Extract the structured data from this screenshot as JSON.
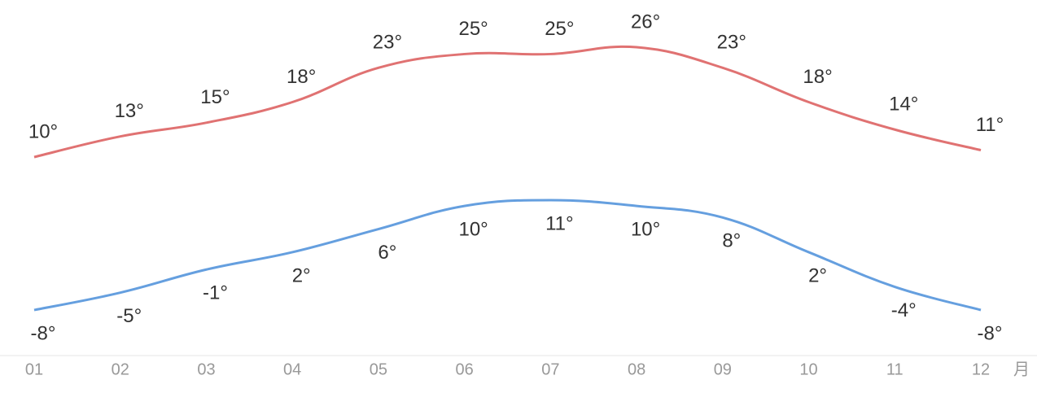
{
  "chart_data": {
    "type": "line",
    "categories": [
      "01",
      "02",
      "03",
      "04",
      "05",
      "06",
      "07",
      "08",
      "09",
      "10",
      "11",
      "12"
    ],
    "x_unit": "月",
    "series": [
      {
        "color": "#e07272",
        "values": [
          10,
          13,
          15,
          18,
          23,
          25,
          25,
          26,
          23,
          18,
          14,
          11
        ],
        "value_labels": [
          "10°",
          "13°",
          "15°",
          "18°",
          "23°",
          "25°",
          "25°",
          "26°",
          "23°",
          "18°",
          "14°",
          "11°"
        ],
        "label_position": "above"
      },
      {
        "color": "#659fdf",
        "values": [
          -8,
          -5,
          -1,
          2,
          6,
          10,
          11,
          10,
          8,
          2,
          -4,
          -8
        ],
        "value_labels": [
          "-8°",
          "-5°",
          "-1°",
          "2°",
          "6°",
          "10°",
          "11°",
          "10°",
          "8°",
          "2°",
          "-4°",
          "-8°"
        ],
        "label_position": "below"
      }
    ]
  }
}
